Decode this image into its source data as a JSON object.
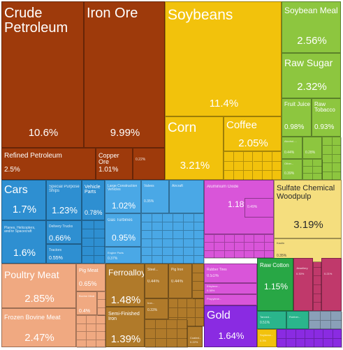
{
  "chart_data": {
    "type": "treemap",
    "title": "",
    "colors": {
      "mineral": "#9e3a0b",
      "vegetable": "#f2c20c",
      "vegetable_light": "#8dc63f",
      "transport": "#2e8fd1",
      "machinery": "#4aa8e6",
      "chemicals": "#d955d9",
      "paper": "#f5de7e",
      "animal": "#f0a981",
      "metals": "#b07a2a",
      "precious": "#8a2be2",
      "plastics": "#2ab58c",
      "textiles": "#28a745",
      "misc": "#c0396b",
      "other": "#8aa0b8"
    },
    "items": [
      {
        "name": "Crude Petroleum",
        "value": "10.6%"
      },
      {
        "name": "Iron Ore",
        "value": "9.99%"
      },
      {
        "name": "Refined Petroleum",
        "value": "2.5%"
      },
      {
        "name": "Copper Ore",
        "value": "1.01%"
      },
      {
        "name": "",
        "value": "0.22%"
      },
      {
        "name": "Soybeans",
        "value": "11.4%"
      },
      {
        "name": "Corn",
        "value": "3.21%"
      },
      {
        "name": "Coffee",
        "value": "2.05%"
      },
      {
        "name": "Soybean Meal",
        "value": "2.56%"
      },
      {
        "name": "Raw Sugar",
        "value": "2.32%"
      },
      {
        "name": "Fruit Juice",
        "value": "0.98%"
      },
      {
        "name": "Raw Tobacco",
        "value": "0.93%"
      },
      {
        "name": "Alcohol-...",
        "value": "0.44%"
      },
      {
        "name": "",
        "value": "0.28%"
      },
      {
        "name": "Other...",
        "value": "0.39%"
      },
      {
        "name": "Cars",
        "value": "1.7%"
      },
      {
        "name": "Planes, Helicopters, and/or Spacecraft",
        "value": "1.6%"
      },
      {
        "name": "Special Purpose Ships",
        "value": "1.23%"
      },
      {
        "name": "Vehicle Parts",
        "value": "0.78%"
      },
      {
        "name": "Delivery Trucks",
        "value": "0.66%"
      },
      {
        "name": "Tractors",
        "value": "0.55%"
      },
      {
        "name": "Large Construction Vehicles",
        "value": "1.02%"
      },
      {
        "name": "Gas Turbines",
        "value": "0.95%"
      },
      {
        "name": "Engine Parts",
        "value": "0.37%"
      },
      {
        "name": "Valves",
        "value": "0.35%"
      },
      {
        "name": "Aircraft",
        "value": ""
      },
      {
        "name": "Aluminium Oxide",
        "value": "1.18%"
      },
      {
        "name": "",
        "value": "0.49%"
      },
      {
        "name": "Sulfate Chemical Woodpulp",
        "value": "3.19%"
      },
      {
        "name": "Kaolin",
        "value": "0.35%"
      },
      {
        "name": "Poultry Meat",
        "value": "2.85%"
      },
      {
        "name": "Frozen Bovine Meat",
        "value": "2.47%"
      },
      {
        "name": "Pig Meat",
        "value": "0.65%"
      },
      {
        "name": "Bovine Meat",
        "value": "0.4%"
      },
      {
        "name": "Ferroalloys",
        "value": "1.48%"
      },
      {
        "name": "Semi-Finished Iron",
        "value": "1.39%"
      },
      {
        "name": "Steel...",
        "value": "0.44%"
      },
      {
        "name": "Pig Iron",
        "value": "0.44%"
      },
      {
        "name": "Iron...",
        "value": "0.33%"
      },
      {
        "name": "Coated...",
        "value": "0.22%"
      },
      {
        "name": "Gold",
        "value": "1.64%"
      },
      {
        "name": "Rubber Tires",
        "value": "0.51%"
      },
      {
        "name": "Ethylene...",
        "value": "0.38%"
      },
      {
        "name": "Propylene...",
        "value": ""
      },
      {
        "name": "Raw Cotton",
        "value": "1.15%"
      },
      {
        "name": "Tanned...",
        "value": "0.51%"
      },
      {
        "name": "Rubber...",
        "value": ""
      },
      {
        "name": "Soybean...",
        "value": "0.3%"
      },
      {
        "name": "Jewellery",
        "value": "0.30%"
      },
      {
        "name": "",
        "value": "0.21%"
      }
    ]
  }
}
